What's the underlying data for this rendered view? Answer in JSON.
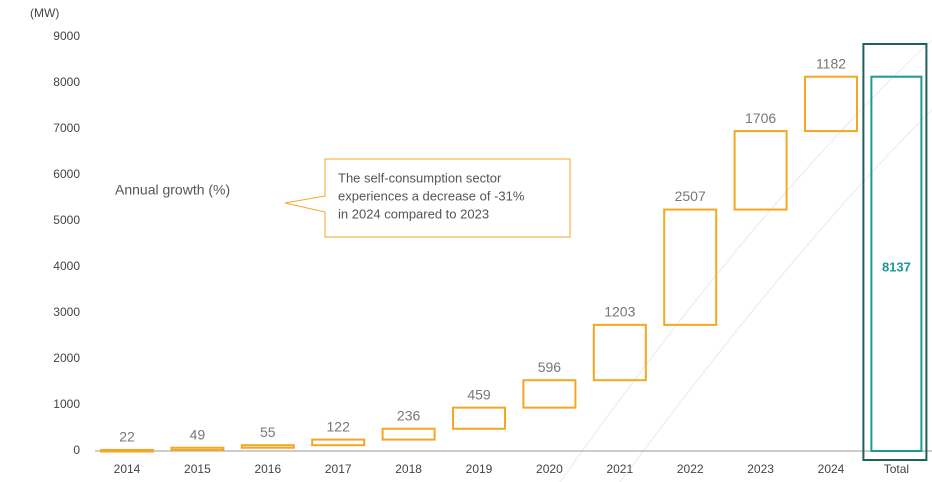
{
  "chart_data": {
    "type": "waterfall",
    "y_label": "(MW)",
    "categories": [
      "2014",
      "2015",
      "2016",
      "2017",
      "2018",
      "2019",
      "2020",
      "2021",
      "2022",
      "2023",
      "2024"
    ],
    "values": [
      22,
      49,
      55,
      122,
      236,
      459,
      596,
      1203,
      2507,
      1706,
      1182
    ],
    "color": "#f5a623",
    "total_label": "Total",
    "total_value": 8137,
    "total_color": "#1a9a96",
    "ylim": [
      0,
      9000
    ],
    "yticks": [
      0,
      1000,
      2000,
      3000,
      4000,
      5000,
      6000,
      7000,
      8000,
      9000
    ],
    "side_label": "Annual growth (%)",
    "annotation": [
      "The self-consumption sector",
      "experiences a decrease of -31%",
      "in 2024 compared to 2023"
    ]
  }
}
